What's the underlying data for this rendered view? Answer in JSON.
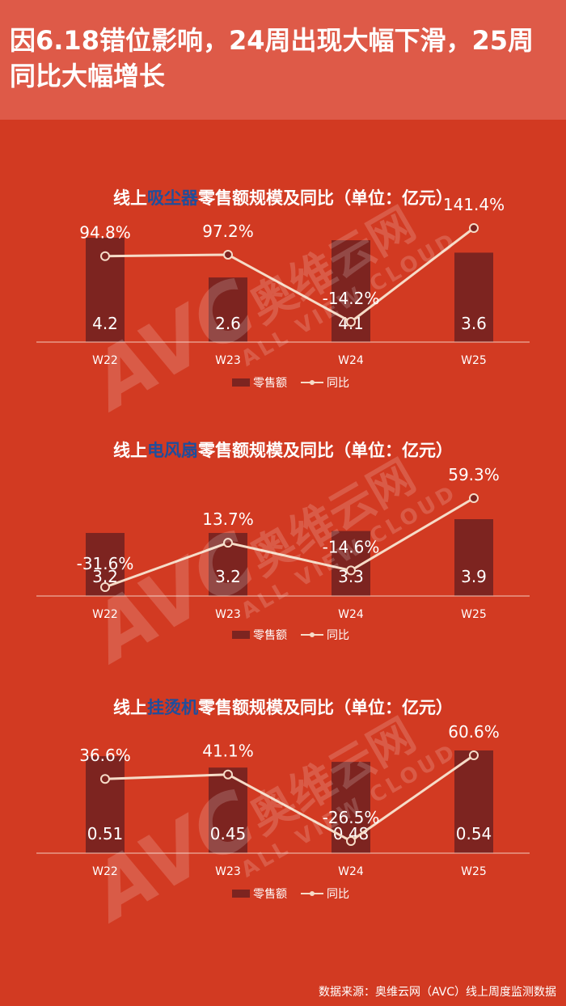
{
  "header": {
    "title": "因6.18错位影响，24周出现大幅下滑，25周同比大幅增长"
  },
  "watermark": {
    "logo": "AVC",
    "cn": "奥维云网",
    "en": "ALL VIEW CLOUD"
  },
  "source": "数据来源：奥维云网（AVC）线上周度监测数据",
  "colors": {
    "background": "#d23a22",
    "header": "#de5a48",
    "bar": "#7d2420",
    "line": "#f6dcc8",
    "title_highlight": "#1f4e9c"
  },
  "chart_data": [
    {
      "type": "bar",
      "title_prefix": "线上",
      "title_highlight": "吸尘器",
      "title_suffix": "零售额规模及同比（单位：亿元）",
      "categories": [
        "W22",
        "W23",
        "W24",
        "W25"
      ],
      "series": [
        {
          "name": "零售额",
          "type": "bar",
          "values": [
            4.2,
            2.6,
            4.1,
            3.6
          ],
          "labels": [
            "4.2",
            "2.6",
            "4.1",
            "3.6"
          ]
        },
        {
          "name": "同比",
          "type": "line",
          "values": [
            94.8,
            97.2,
            -14.2,
            141.4
          ],
          "labels": [
            "94.8%",
            "97.2%",
            "-14.2%",
            "141.4%"
          ]
        }
      ],
      "legend": "bottom"
    },
    {
      "type": "bar",
      "title_prefix": "线上",
      "title_highlight": "电风扇",
      "title_suffix": "零售额规模及同比（单位：亿元）",
      "categories": [
        "W22",
        "W23",
        "W24",
        "W25"
      ],
      "series": [
        {
          "name": "零售额",
          "type": "bar",
          "values": [
            3.2,
            3.2,
            3.3,
            3.9
          ],
          "labels": [
            "3.2",
            "3.2",
            "3.3",
            "3.9"
          ]
        },
        {
          "name": "同比",
          "type": "line",
          "values": [
            -31.6,
            13.7,
            -14.6,
            59.3
          ],
          "labels": [
            "-31.6%",
            "13.7%",
            "-14.6%",
            "59.3%"
          ]
        }
      ],
      "legend": "bottom"
    },
    {
      "type": "bar",
      "title_prefix": "线上",
      "title_highlight": "挂烫机",
      "title_suffix": "零售额规模及同比（单位：亿元）",
      "categories": [
        "W22",
        "W23",
        "W24",
        "W25"
      ],
      "series": [
        {
          "name": "零售额",
          "type": "bar",
          "values": [
            0.51,
            0.45,
            0.48,
            0.54
          ],
          "labels": [
            "0.51",
            "0.45",
            "0.48",
            "0.54"
          ]
        },
        {
          "name": "同比",
          "type": "line",
          "values": [
            36.6,
            41.1,
            -26.5,
            60.6
          ],
          "labels": [
            "36.6%",
            "41.1%",
            "-26.5%",
            "60.6%"
          ]
        }
      ],
      "legend": "bottom"
    }
  ]
}
